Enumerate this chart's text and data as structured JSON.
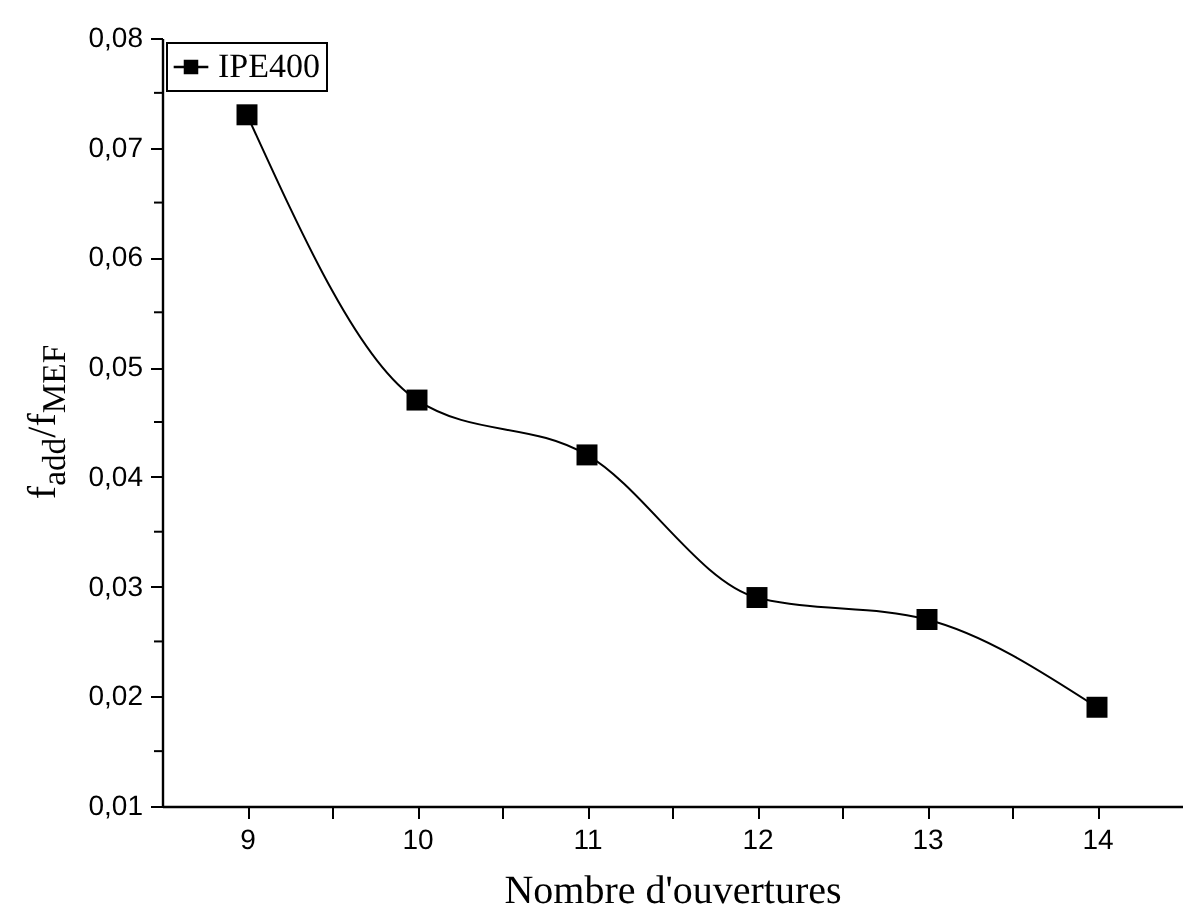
{
  "chart_data": {
    "type": "line",
    "xlabel": "Nombre d'ouvertures",
    "ylabel": "f$_{add}$/f$_{MEF}$",
    "x": [
      9,
      10,
      11,
      12,
      13,
      14
    ],
    "series": [
      {
        "name": "IPE400",
        "color": "#000000",
        "values": [
          0.073,
          0.047,
          0.042,
          0.029,
          0.027,
          0.019
        ]
      }
    ],
    "xlim": [
      8.5,
      14.5
    ],
    "xticks": [
      9,
      {
        "value": 9.5,
        "label": null
      },
      10,
      {
        "value": 10.5,
        "label": null
      },
      11,
      {
        "value": 11.5,
        "label": null
      },
      12,
      {
        "value": 12.5,
        "label": null
      },
      13,
      {
        "value": 13.5,
        "label": null
      },
      14
    ],
    "ylim": [
      0.01,
      0.08
    ],
    "yticks": [
      {
        "value": 0.01,
        "label": "0,01"
      },
      {
        "value": 0.015,
        "label": null
      },
      {
        "value": 0.02,
        "label": "0,02"
      },
      {
        "value": 0.025,
        "label": null
      },
      {
        "value": 0.03,
        "label": "0,03"
      },
      {
        "value": 0.035,
        "label": null
      },
      {
        "value": 0.04,
        "label": "0,04"
      },
      {
        "value": 0.045,
        "label": null
      },
      {
        "value": 0.05,
        "label": "0,05"
      },
      {
        "value": 0.055,
        "label": null
      },
      {
        "value": 0.06,
        "label": "0,06"
      },
      {
        "value": 0.065,
        "label": null
      },
      {
        "value": 0.07,
        "label": "0,07"
      },
      {
        "value": 0.075,
        "label": null
      },
      {
        "value": 0.08,
        "label": "0,08"
      }
    ],
    "grid": false,
    "legend": "top left",
    "marker": "square",
    "line_style": "solid"
  }
}
